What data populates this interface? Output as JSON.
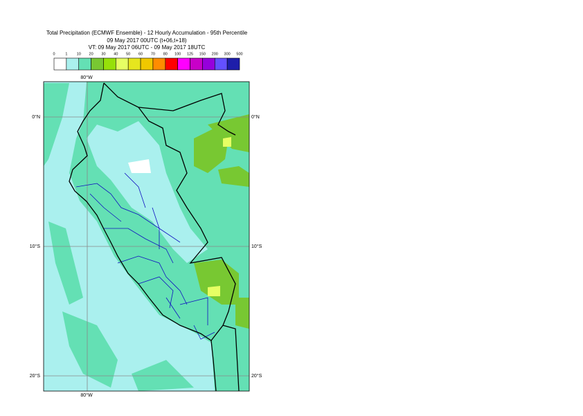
{
  "header": {
    "lines": [
      "Total Precipitation (ECMWF Ensemble) - 12 Hourly Accumulation - 95th Percentile",
      "09 May 2017 00UTC (t+06,t+18)",
      "VT: 09 May 2017 06UTC - 09 May 2017 18UTC"
    ]
  },
  "legend": {
    "labels": [
      "0",
      "1",
      "10",
      "20",
      "30",
      "40",
      "50",
      "60",
      "70",
      "80",
      "100",
      "125",
      "150",
      "200",
      "300",
      "500"
    ],
    "colors": [
      "#ffffff",
      "#aaf0ee",
      "#64e0b4",
      "#78c832",
      "#96e00a",
      "#e6ff64",
      "#e6e61e",
      "#f0c800",
      "#ff8c00",
      "#ff0000",
      "#ff00ff",
      "#c800c8",
      "#9600dc",
      "#6450ff",
      "#1e1eaa",
      "#0a0a50"
    ]
  },
  "map": {
    "lon_label_top": "80°W",
    "lon_label_bottom": "80°W",
    "lat_labels": [
      "0°N",
      "10°S",
      "20°S"
    ]
  }
}
